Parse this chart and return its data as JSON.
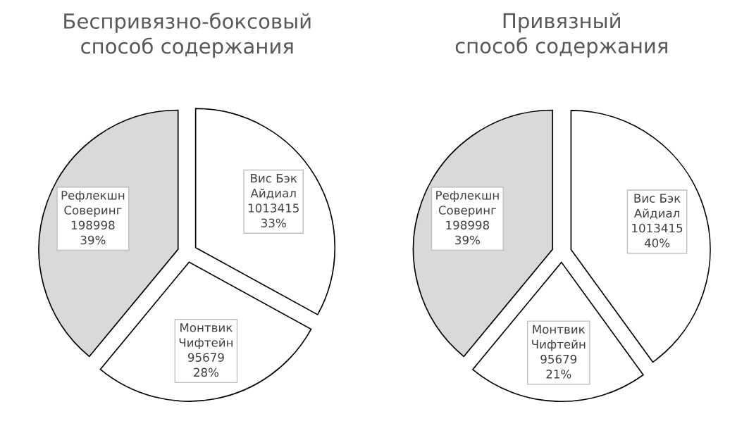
{
  "chart_data": [
    {
      "type": "pie",
      "title": "Беспривязно-боксовый\nспособ содержания",
      "categories": [
        "Вис Бэк\nАйдиал",
        "Монтвик\nЧифтейн",
        "Рефлекшн\nСоверинг"
      ],
      "values": [
        33,
        28,
        39
      ],
      "colors": [
        "#ffffff",
        "#ffffff",
        "#d9d9d9"
      ],
      "value_labels": [
        "1013415\n33%",
        "95679\n28%",
        "198998\n39%"
      ]
    },
    {
      "type": "pie",
      "title": "Привязный\nспособ содержания",
      "categories": [
        "Вис Бэк\nАйдиал",
        "Монтвик\nЧифтейн",
        "Рефлекшн\nСоверинг"
      ],
      "values": [
        40,
        21,
        39
      ],
      "colors": [
        "#ffffff",
        "#ffffff",
        "#d9d9d9"
      ],
      "value_labels": [
        "1013415\n40%",
        "95679\n21%",
        "198998\n39%"
      ]
    }
  ]
}
